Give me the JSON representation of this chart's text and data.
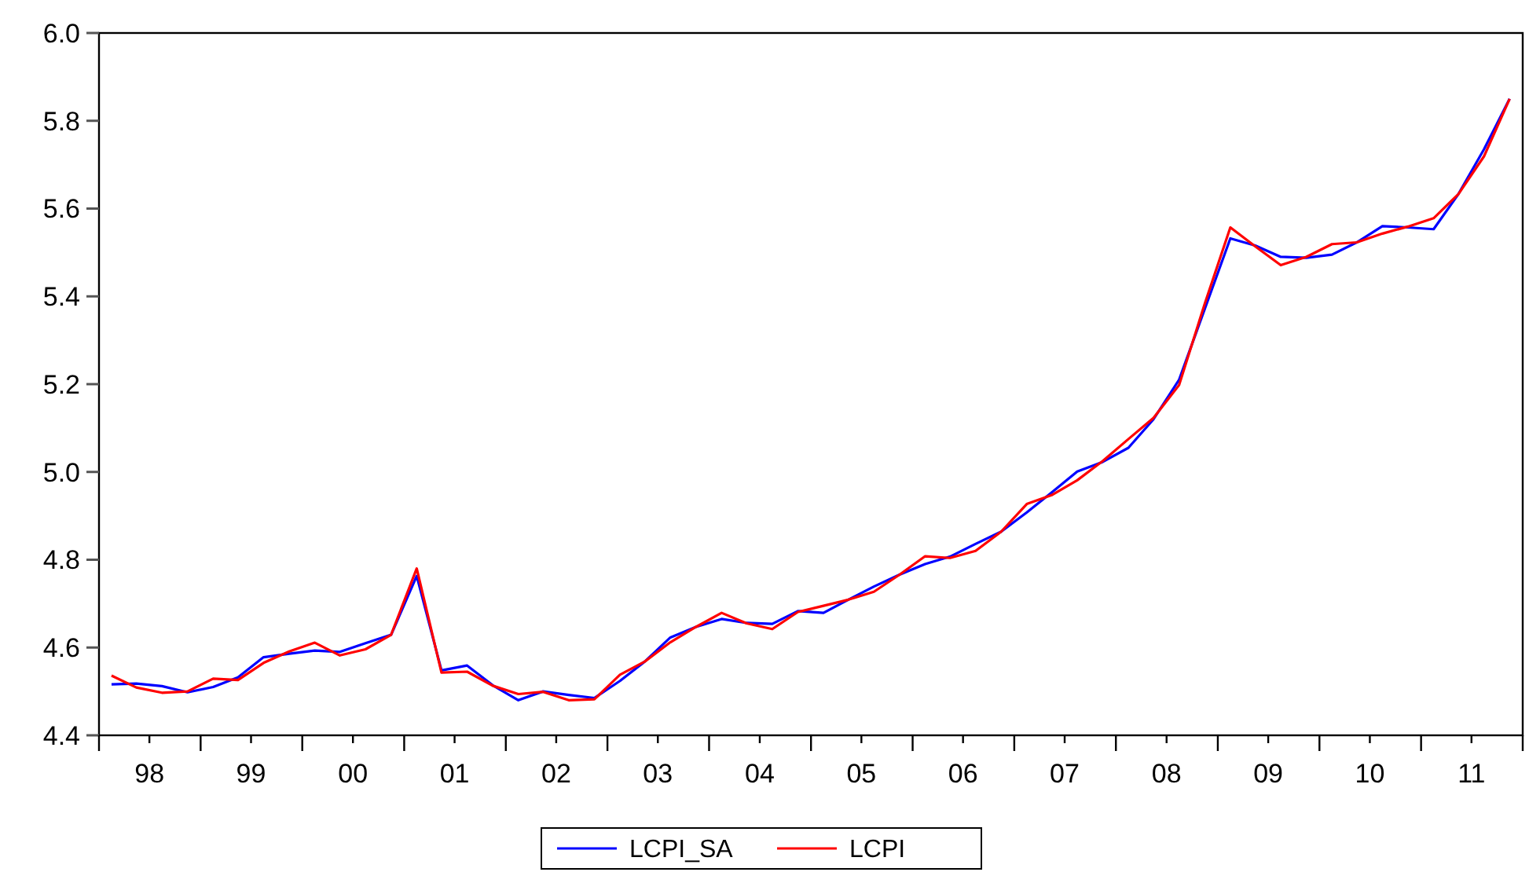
{
  "chart_data": {
    "type": "line",
    "x": [
      "1998-02-15",
      "1998-05-15",
      "1998-08-15",
      "1998-11-15",
      "1999-02-15",
      "1999-05-15",
      "1999-08-15",
      "1999-11-15",
      "2000-02-15",
      "2000-05-15",
      "2000-08-15",
      "2000-11-15",
      "2001-02-15",
      "2001-05-15",
      "2001-08-15",
      "2001-11-15",
      "2002-02-15",
      "2002-05-15",
      "2002-08-15",
      "2002-11-15",
      "2003-02-15",
      "2003-05-15",
      "2003-08-15",
      "2003-11-15",
      "2004-02-15",
      "2004-05-15",
      "2004-08-15",
      "2004-11-15",
      "2005-02-15",
      "2005-05-15",
      "2005-08-15",
      "2005-11-15",
      "2006-02-15",
      "2006-05-15",
      "2006-08-15",
      "2006-11-15",
      "2007-02-15",
      "2007-05-15",
      "2007-08-15",
      "2007-11-15",
      "2008-02-15",
      "2008-05-15",
      "2008-08-15",
      "2008-11-15",
      "2009-02-15",
      "2009-05-15",
      "2009-08-15",
      "2009-11-15",
      "2010-02-15",
      "2010-05-15",
      "2010-08-15",
      "2010-11-15",
      "2011-02-15",
      "2011-05-15",
      "2011-08-15",
      "2011-11-15"
    ],
    "series": [
      {
        "name": "LCPI_SA",
        "color": "#0000ff",
        "values": [
          4.516,
          4.518,
          4.512,
          4.498,
          4.51,
          4.532,
          4.578,
          4.586,
          4.593,
          4.59,
          4.61,
          4.629,
          4.763,
          4.548,
          4.559,
          4.514,
          4.48,
          4.5,
          4.492,
          4.485,
          4.524,
          4.568,
          4.623,
          4.647,
          4.665,
          4.656,
          4.654,
          4.683,
          4.679,
          4.709,
          4.739,
          4.766,
          4.79,
          4.807,
          4.836,
          4.864,
          4.908,
          4.953,
          5.001,
          5.023,
          5.055,
          5.12,
          5.21,
          5.371,
          5.532,
          5.516,
          5.49,
          5.488,
          5.495,
          5.523,
          5.56,
          5.557,
          5.553,
          5.633,
          5.735,
          5.85
        ]
      },
      {
        "name": "LCPI",
        "color": "#ff0000",
        "values": [
          4.536,
          4.509,
          4.497,
          4.5,
          4.529,
          4.526,
          4.565,
          4.591,
          4.611,
          4.582,
          4.596,
          4.629,
          4.78,
          4.543,
          4.545,
          4.513,
          4.494,
          4.499,
          4.48,
          4.482,
          4.538,
          4.568,
          4.612,
          4.647,
          4.679,
          4.655,
          4.642,
          4.681,
          4.695,
          4.709,
          4.727,
          4.766,
          4.808,
          4.804,
          4.82,
          4.864,
          4.927,
          4.947,
          4.981,
          5.025,
          5.075,
          5.123,
          5.198,
          5.383,
          5.557,
          5.514,
          5.471,
          5.49,
          5.519,
          5.523,
          5.543,
          5.559,
          5.578,
          5.633,
          5.719,
          5.85
        ]
      }
    ],
    "xlim": [
      "1998-01-01",
      "2012-01-01"
    ],
    "xticks": [
      {
        "value": "1998-01-01",
        "label": null
      },
      {
        "value": "1998-07-01",
        "label": "98"
      },
      {
        "value": "1999-01-01",
        "label": null
      },
      {
        "value": "1999-07-01",
        "label": "99"
      },
      {
        "value": "2000-01-01",
        "label": null
      },
      {
        "value": "2000-07-01",
        "label": "00"
      },
      {
        "value": "2001-01-01",
        "label": null
      },
      {
        "value": "2001-07-01",
        "label": "01"
      },
      {
        "value": "2002-01-01",
        "label": null
      },
      {
        "value": "2002-07-01",
        "label": "02"
      },
      {
        "value": "2003-01-01",
        "label": null
      },
      {
        "value": "2003-07-01",
        "label": "03"
      },
      {
        "value": "2004-01-01",
        "label": null
      },
      {
        "value": "2004-07-01",
        "label": "04"
      },
      {
        "value": "2005-01-01",
        "label": null
      },
      {
        "value": "2005-07-01",
        "label": "05"
      },
      {
        "value": "2006-01-01",
        "label": null
      },
      {
        "value": "2006-07-01",
        "label": "06"
      },
      {
        "value": "2007-01-01",
        "label": null
      },
      {
        "value": "2007-07-01",
        "label": "07"
      },
      {
        "value": "2008-01-01",
        "label": null
      },
      {
        "value": "2008-07-01",
        "label": "08"
      },
      {
        "value": "2009-01-01",
        "label": null
      },
      {
        "value": "2009-07-01",
        "label": "09"
      },
      {
        "value": "2010-01-01",
        "label": null
      },
      {
        "value": "2010-07-01",
        "label": "10"
      },
      {
        "value": "2011-01-01",
        "label": null
      },
      {
        "value": "2011-07-01",
        "label": "11"
      },
      {
        "value": "2012-01-01",
        "label": null
      }
    ],
    "ylim": [
      4.4,
      6.0
    ],
    "yticks": [
      {
        "value": 4.4,
        "label": "4.4"
      },
      {
        "value": 4.6,
        "label": "4.6"
      },
      {
        "value": 4.8,
        "label": "4.8"
      },
      {
        "value": 5.0,
        "label": "5.0"
      },
      {
        "value": 5.2,
        "label": "5.2"
      },
      {
        "value": 5.4,
        "label": "5.4"
      },
      {
        "value": 5.6,
        "label": "5.6"
      },
      {
        "value": 5.8,
        "label": "5.8"
      },
      {
        "value": 6.0,
        "label": "6.0"
      }
    ],
    "legend": "bottom",
    "grid": false,
    "marker": "none",
    "line_style": "solid"
  }
}
